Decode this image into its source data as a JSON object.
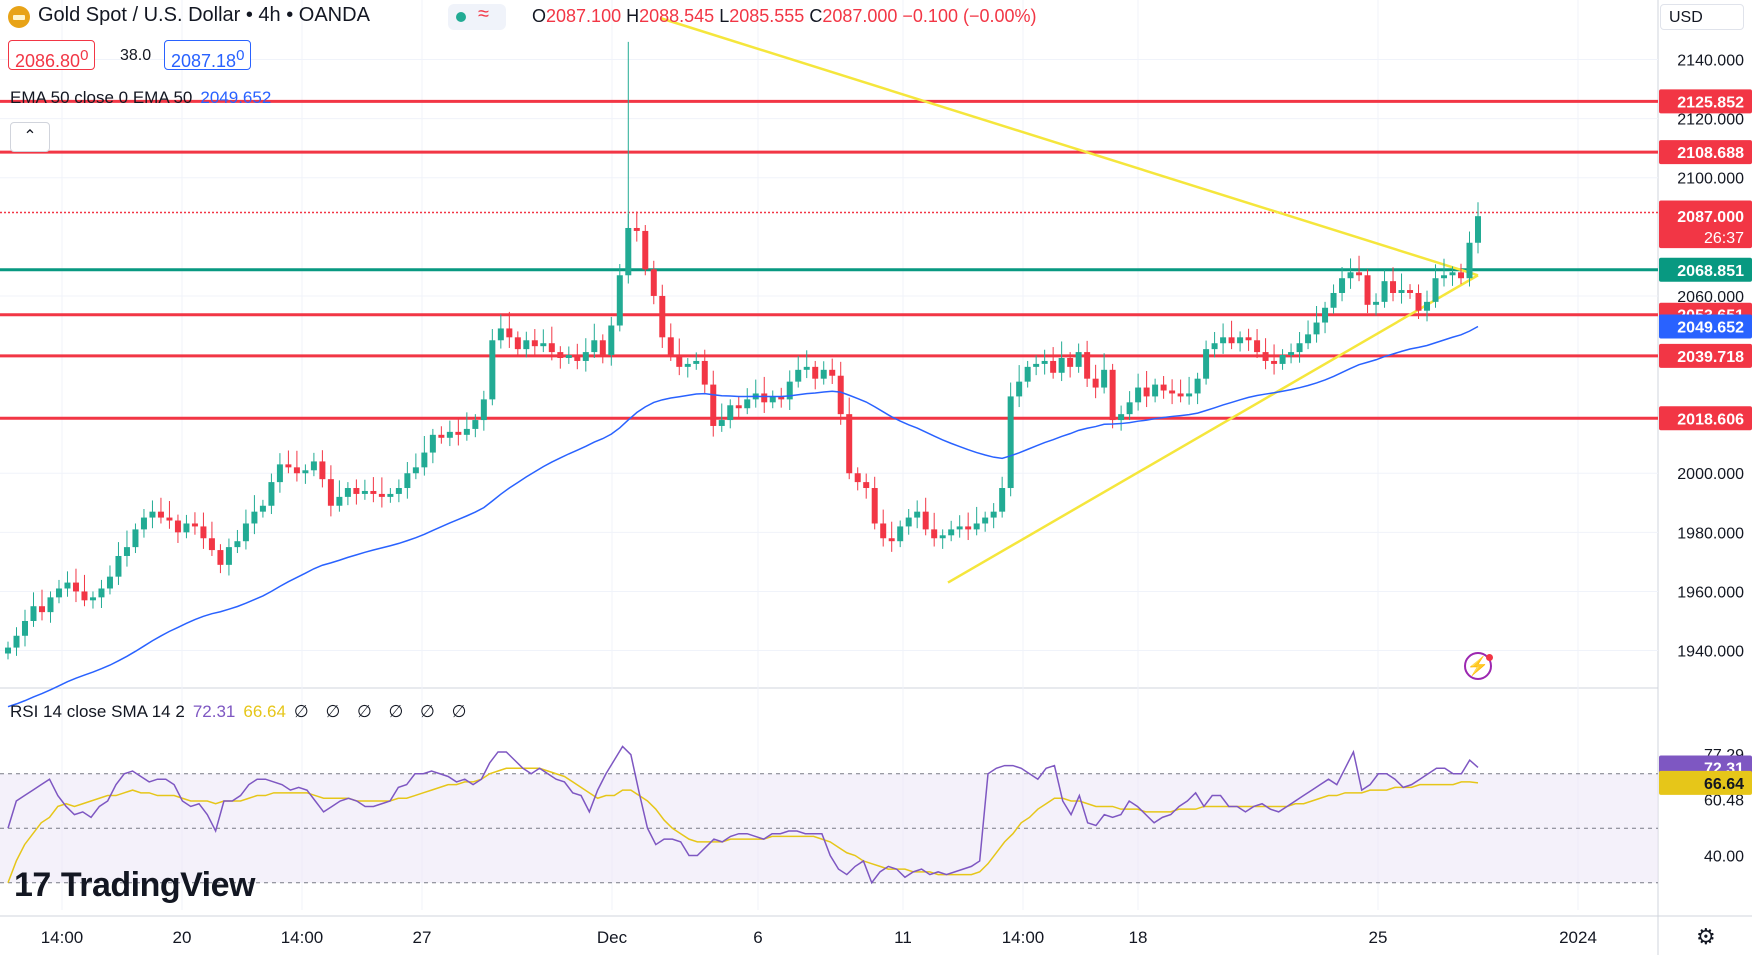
{
  "header": {
    "title": "Gold Spot / U.S. Dollar • 4h • OANDA",
    "ohlc": {
      "o_label": "O",
      "o": "2087.100",
      "h_label": "H",
      "h": "2088.545",
      "l_label": "L",
      "l": "2085.555",
      "c_label": "C",
      "c": "2087.000",
      "change": "−0.100 (−0.00%)"
    },
    "bid": "2086.80",
    "bid_sup": "0",
    "spread": "38.0",
    "ask": "2087.18",
    "ask_sup": "0",
    "currency": "USD"
  },
  "ema_legend": {
    "label": "EMA 50 close 0 EMA 50",
    "value": "2049.652"
  },
  "rsi_legend": {
    "label": "RSI 14 close SMA 14 2",
    "rsi": "72.31",
    "sma": "66.64",
    "zeros": "∅ ∅ ∅ ∅ ∅ ∅"
  },
  "brand": {
    "name": "TradingView",
    "mark": "17"
  },
  "colors": {
    "up": "#22ab94",
    "down": "#f23645",
    "ema": "#2962ff",
    "rsi": "#7e57c2",
    "rsi_sma": "#e6c619",
    "trend": "#f5e63c",
    "level_red": "#f23645",
    "level_green": "#089981"
  },
  "chart_data": {
    "type": "candlestick",
    "price_axis": {
      "ticks": [
        "2140.000",
        "2120.000",
        "2100.000",
        "2060.000",
        "2000.000",
        "1980.000",
        "1960.000",
        "1940.000"
      ],
      "range": [
        1928,
        2150
      ]
    },
    "time_axis": {
      "ticks": [
        "14:00",
        "20",
        "14:00",
        "27",
        "Dec",
        "6",
        "11",
        "14:00",
        "18",
        "25",
        "2024"
      ]
    },
    "horizontal_levels": [
      {
        "label": "2125.852",
        "value": 2125.852,
        "color": "#f23645"
      },
      {
        "label": "2108.688",
        "value": 2108.688,
        "color": "#f23645"
      },
      {
        "label": "2088.233",
        "value": 2088.233,
        "color": "#f23645",
        "style": "dotted"
      },
      {
        "label": "2068.851",
        "value": 2068.851,
        "color": "#089981"
      },
      {
        "label": "2053.651",
        "value": 2053.651,
        "color": "#f23645"
      },
      {
        "label": "2039.718",
        "value": 2039.718,
        "color": "#f23645"
      },
      {
        "label": "2018.606",
        "value": 2018.606,
        "color": "#f23645"
      }
    ],
    "price_badges": [
      {
        "label": "2087.000",
        "sub": "26:37",
        "value": 2087.0,
        "color": "#f23645"
      },
      {
        "label": "2049.652",
        "value": 2049.652,
        "color": "#2962ff"
      }
    ],
    "close_series": [
      1941,
      1945,
      1950,
      1955,
      1953,
      1958,
      1961,
      1963,
      1960,
      1957,
      1958,
      1961,
      1965,
      1972,
      1975,
      1981,
      1985,
      1987,
      1985,
      1984,
      1980,
      1983,
      1982,
      1978,
      1974,
      1969,
      1975,
      1977,
      1983,
      1987,
      1989,
      1997,
      2003,
      2002,
      2000,
      2001,
      2004,
      1998,
      1989,
      1992,
      1995,
      1993,
      1994,
      1993,
      1992,
      1993,
      1995,
      2000,
      2002,
      2007,
      2013,
      2012,
      2014,
      2013,
      2015,
      2018,
      2025,
      2045,
      2049,
      2046,
      2042,
      2045,
      2043,
      2044,
      2041,
      2039,
      2040,
      2038,
      2041,
      2045,
      2040,
      2050,
      2067,
      2083,
      2082,
      2069,
      2060,
      2046,
      2040,
      2036,
      2037,
      2038,
      2030,
      2016,
      2018,
      2023,
      2022,
      2025,
      2027,
      2024,
      2026,
      2025,
      2031,
      2035,
      2036,
      2032,
      2035,
      2033,
      2020,
      2000,
      1997,
      1995,
      1983,
      1978,
      1977,
      1982,
      1985,
      1987,
      1981,
      1978,
      1979,
      1981,
      1982,
      1981,
      1983,
      1985,
      1987,
      1995,
      2026,
      2031,
      2036,
      2037,
      2038,
      2034,
      2039,
      2036,
      2041,
      2032,
      2029,
      2035,
      2018,
      2020,
      2024,
      2029,
      2026,
      2030,
      2028,
      2027,
      2026,
      2027,
      2032,
      2042,
      2044,
      2046,
      2044,
      2046,
      2045,
      2041,
      2038,
      2037,
      2040,
      2041,
      2044,
      2047,
      2051,
      2056,
      2061,
      2066,
      2068,
      2067,
      2057,
      2058,
      2065,
      2061,
      2062,
      2061,
      2055,
      2058,
      2066,
      2067,
      2068,
      2066,
      2078,
      2087
    ],
    "ema50_end": 2049.652,
    "trendlines": [
      {
        "from": [
          "Dec 2",
          2150
        ],
        "to": [
          "Dec 28",
          2067
        ]
      },
      {
        "from": [
          "Dec 12",
          1963
        ],
        "to": [
          "Dec 28",
          2067
        ]
      }
    ],
    "rsi": {
      "ticks": [
        "77.29",
        "60.48",
        "40.00"
      ],
      "bands": [
        70,
        50,
        30
      ],
      "last_rsi": 72.31,
      "last_sma": 66.64,
      "values": [
        50,
        60,
        62,
        64,
        66,
        68,
        62,
        58,
        55,
        56,
        54,
        58,
        60,
        66,
        70,
        71,
        69,
        67,
        68,
        68,
        66,
        60,
        58,
        59,
        55,
        49,
        60,
        60,
        62,
        66,
        68,
        68,
        67,
        66,
        64,
        65,
        64,
        60,
        56,
        58,
        60,
        61,
        60,
        58,
        58,
        59,
        60,
        65,
        66,
        70,
        70,
        71,
        70,
        69,
        67,
        68,
        66,
        68,
        74,
        78,
        78,
        75,
        72,
        70,
        72,
        70,
        68,
        67,
        63,
        62,
        56,
        64,
        70,
        75,
        80,
        77,
        63,
        50,
        44,
        46,
        46,
        45,
        40,
        40,
        43,
        46,
        45,
        47,
        48,
        48,
        47,
        46,
        48,
        48,
        49,
        49,
        48,
        48,
        48,
        40,
        35,
        33,
        36,
        38,
        30,
        34,
        36,
        35,
        32,
        34,
        35,
        33,
        34,
        33,
        34,
        35,
        36,
        38,
        70,
        72,
        73,
        73,
        72,
        70,
        68,
        72,
        73,
        60,
        55,
        62,
        52,
        51,
        55,
        54,
        55,
        60,
        58,
        55,
        52,
        54,
        55,
        58,
        60,
        63,
        58,
        62,
        62,
        58,
        58,
        56,
        58,
        59,
        57,
        56,
        58,
        60,
        62,
        64,
        66,
        68,
        66,
        72,
        78,
        64,
        66,
        70,
        70,
        68,
        65,
        66,
        68,
        70,
        72,
        72,
        70,
        70,
        75,
        72.31
      ],
      "sma_values": [
        30,
        38,
        44,
        48,
        52,
        54,
        58,
        59,
        58,
        59,
        60,
        61,
        62,
        62,
        63,
        64,
        63,
        63,
        62,
        62,
        62,
        61,
        60,
        60,
        60,
        59,
        60,
        60,
        60,
        61,
        62,
        62,
        63,
        63,
        63,
        63,
        63,
        62,
        61,
        61,
        61,
        61,
        60,
        60,
        60,
        60,
        60,
        61,
        61,
        62,
        63,
        64,
        65,
        66,
        66,
        67,
        67,
        68,
        70,
        71,
        72,
        72,
        72,
        72,
        72,
        71,
        70,
        69,
        67,
        65,
        63,
        61,
        62,
        62,
        64,
        64,
        62,
        60,
        57,
        53,
        50,
        48,
        46,
        45,
        45,
        45,
        45,
        46,
        46,
        46,
        46,
        46,
        47,
        47,
        47,
        47,
        47,
        47,
        46,
        45,
        43,
        41,
        40,
        38,
        37,
        36,
        35,
        35,
        35,
        34,
        34,
        34,
        33,
        33,
        33,
        33,
        33,
        34,
        37,
        41,
        45,
        48,
        52,
        54,
        57,
        59,
        61,
        61,
        60,
        60,
        59,
        58,
        58,
        58,
        57,
        57,
        57,
        56,
        56,
        56,
        56,
        57,
        57,
        57,
        58,
        58,
        58,
        58,
        58,
        58,
        58,
        58,
        58,
        58,
        58,
        59,
        59,
        60,
        61,
        62,
        62,
        63,
        63,
        63,
        64,
        64,
        64,
        65,
        65,
        65,
        66,
        66,
        66,
        66,
        66,
        67,
        67,
        66.64
      ]
    }
  }
}
